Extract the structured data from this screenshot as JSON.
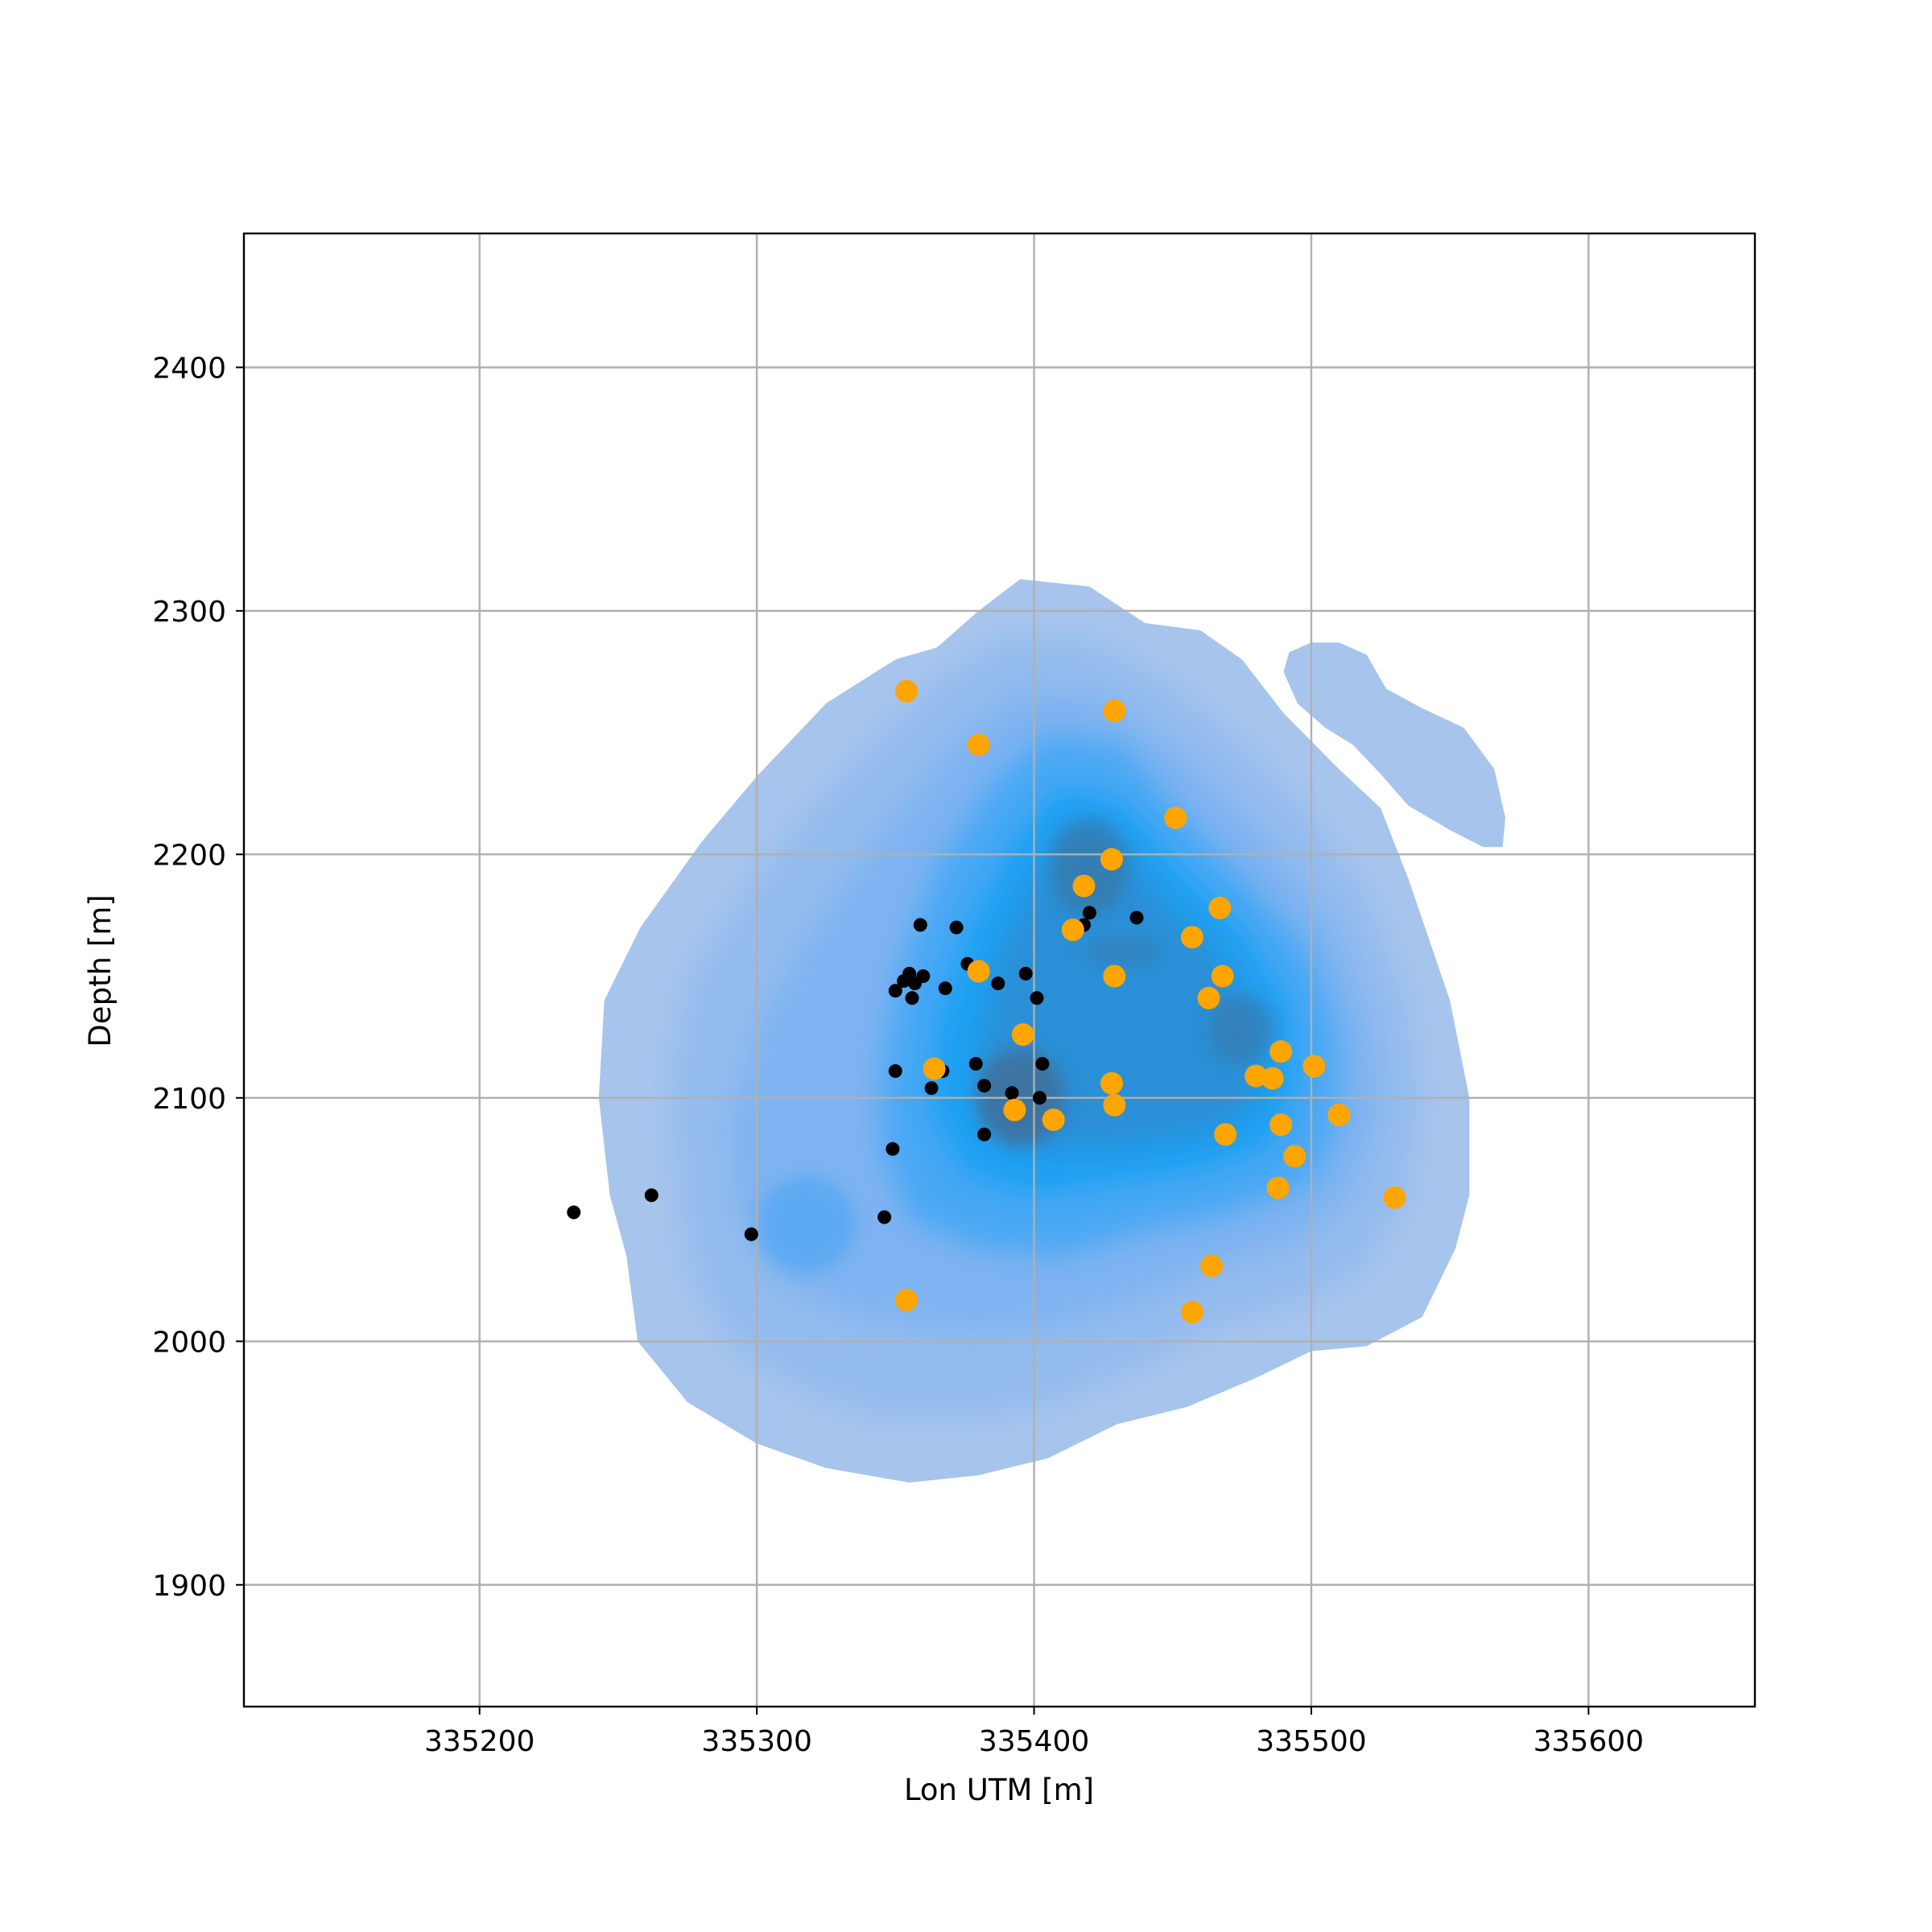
{
  "chart_data": {
    "type": "scatter",
    "title": "",
    "xlabel": "Lon UTM [m]",
    "ylabel": "Depth [m]",
    "xlim": [
      335115,
      335660
    ],
    "ylim": [
      1850,
      2455
    ],
    "xticks": [
      335200,
      335300,
      335400,
      335500,
      335600
    ],
    "yticks": [
      1900,
      2000,
      2100,
      2200,
      2300,
      2400
    ],
    "grid": true,
    "colors": {
      "density_outer": "#a7c4ec",
      "density_mid": "#5aa9f2",
      "density_core": "#1fa0f3",
      "density_peak": "#3f6f9a",
      "black_points": "#000000",
      "orange_points": "#ffa500"
    },
    "density": {
      "description_free": true,
      "levels": 12
    },
    "series": [
      {
        "marker": "small-black",
        "points": [
          [
            335234,
            2053
          ],
          [
            335262,
            2060
          ],
          [
            335298,
            2044
          ],
          [
            335346,
            2051
          ],
          [
            335349,
            2079
          ],
          [
            335350,
            2111
          ],
          [
            335350,
            2144
          ],
          [
            335353,
            2148
          ],
          [
            335355,
            2151
          ],
          [
            335356,
            2141
          ],
          [
            335357,
            2147
          ],
          [
            335359,
            2171
          ],
          [
            335360,
            2150
          ],
          [
            335363,
            2104
          ],
          [
            335367,
            2111
          ],
          [
            335368,
            2145
          ],
          [
            335372,
            2170
          ],
          [
            335376,
            2155
          ],
          [
            335379,
            2114
          ],
          [
            335382,
            2105
          ],
          [
            335382,
            2085
          ],
          [
            335387,
            2147
          ],
          [
            335392,
            2102
          ],
          [
            335397,
            2151
          ],
          [
            335401,
            2141
          ],
          [
            335402,
            2100
          ],
          [
            335403,
            2114
          ],
          [
            335418,
            2171
          ],
          [
            335420,
            2176
          ],
          [
            335437,
            2174
          ]
        ]
      },
      {
        "marker": "large-orange",
        "points": [
          [
            335354,
            2267
          ],
          [
            335380,
            2245
          ],
          [
            335429,
            2259
          ],
          [
            335451,
            2215
          ],
          [
            335428,
            2198
          ],
          [
            335418,
            2187
          ],
          [
            335414,
            2169
          ],
          [
            335467,
            2178
          ],
          [
            335457,
            2166
          ],
          [
            335380,
            2152
          ],
          [
            335429,
            2150
          ],
          [
            335468,
            2150
          ],
          [
            335463,
            2141
          ],
          [
            335396,
            2126
          ],
          [
            335489,
            2119
          ],
          [
            335364,
            2112
          ],
          [
            335501,
            2113
          ],
          [
            335480,
            2109
          ],
          [
            335486,
            2108
          ],
          [
            335428,
            2106
          ],
          [
            335429,
            2097
          ],
          [
            335393,
            2095
          ],
          [
            335407,
            2091
          ],
          [
            335510,
            2093
          ],
          [
            335489,
            2089
          ],
          [
            335469,
            2085
          ],
          [
            335494,
            2076
          ],
          [
            335488,
            2063
          ],
          [
            335530,
            2059
          ],
          [
            335464,
            2031
          ],
          [
            335354,
            2017
          ],
          [
            335457,
            2012
          ]
        ]
      }
    ]
  }
}
